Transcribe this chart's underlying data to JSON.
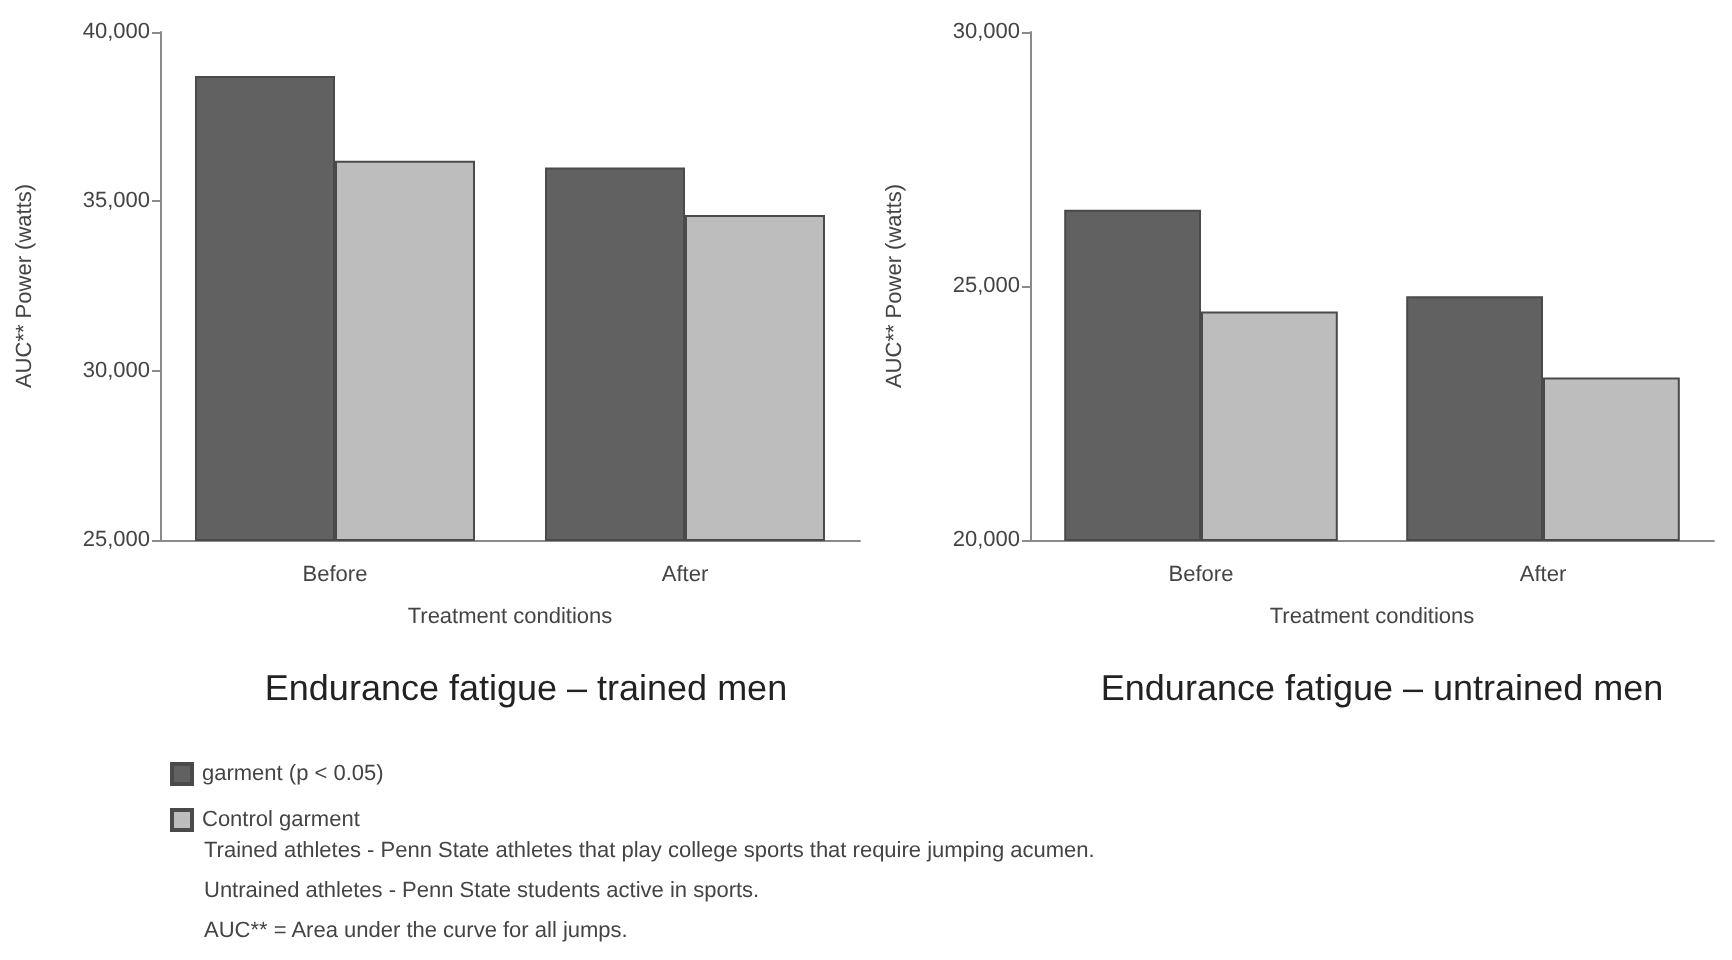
{
  "chart_data": [
    {
      "type": "bar",
      "title": "Endurance fatigue – trained men",
      "xlabel": "Treatment conditions",
      "ylabel": "AUC** Power (watts)",
      "categories": [
        "Before",
        "After"
      ],
      "series": [
        {
          "name": "garment (p < 0.05)",
          "color": "#616161",
          "values": [
            38700,
            36000
          ]
        },
        {
          "name": "Control garment",
          "color": "#bdbdbd",
          "values": [
            36200,
            34600
          ]
        }
      ],
      "ylim": [
        25000,
        40000
      ],
      "yticks": [
        {
          "value": 25000,
          "label": "25,000"
        },
        {
          "value": 30000,
          "label": "30,000"
        },
        {
          "value": 35000,
          "label": "35,000"
        },
        {
          "value": 40000,
          "label": "40,000"
        }
      ],
      "legend": "bottom left",
      "annotations": [
        "Trained athletes - Penn State athletes that play college sports that require jumping acumen.",
        "Untrained athletes - Penn State students active in sports.",
        "AUC** = Area under the curve for all jumps."
      ]
    },
    {
      "type": "bar",
      "title": "Endurance fatigue – untrained men",
      "xlabel": "Treatment conditions",
      "ylabel": "AUC** Power (watts)",
      "categories": [
        "Before",
        "After"
      ],
      "series": [
        {
          "color": "#616161",
          "values": [
            26500,
            24800
          ]
        },
        {
          "color": "#bdbdbd",
          "values": [
            24500,
            23200
          ]
        }
      ],
      "ylim": [
        20000,
        30000
      ],
      "yticks": [
        {
          "value": 20000,
          "label": "20,000"
        },
        {
          "value": 25000,
          "label": "25,000"
        },
        {
          "value": 30000,
          "label": "30,000"
        }
      ]
    }
  ]
}
